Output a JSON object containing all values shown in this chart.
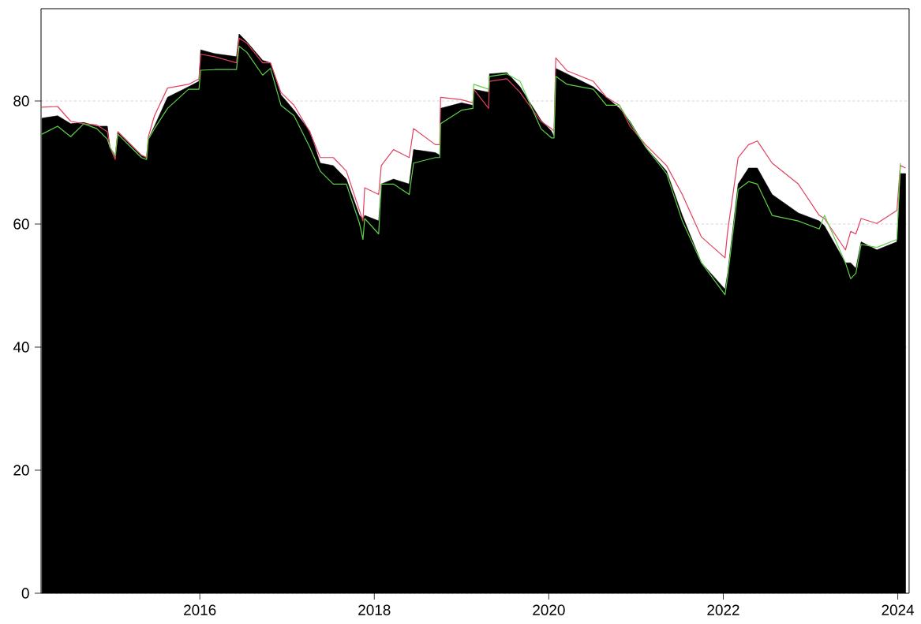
{
  "chart_data": {
    "type": "area",
    "x": [
      2014.19,
      2014.37,
      2014.52,
      2014.67,
      2014.82,
      2014.94,
      2014.97,
      2015.03,
      2015.06,
      2015.33,
      2015.39,
      2015.41,
      2015.48,
      2015.63,
      2015.87,
      2015.99,
      2016.01,
      2016.17,
      2016.42,
      2016.45,
      2016.54,
      2016.72,
      2016.81,
      2016.93,
      2017.08,
      2017.26,
      2017.38,
      2017.53,
      2017.68,
      2017.83,
      2017.87,
      2017.89,
      2018.05,
      2018.08,
      2018.22,
      2018.4,
      2018.45,
      2018.7,
      2018.75,
      2018.76,
      2019.0,
      2019.13,
      2019.14,
      2019.31,
      2019.32,
      2019.52,
      2019.67,
      2019.91,
      2020.03,
      2020.06,
      2020.08,
      2020.21,
      2020.51,
      2020.66,
      2020.81,
      2020.93,
      2021.11,
      2021.35,
      2021.53,
      2021.75,
      2022.02,
      2022.05,
      2022.17,
      2022.29,
      2022.39,
      2022.56,
      2022.86,
      2023.1,
      2023.16,
      2023.4,
      2023.46,
      2023.52,
      2023.58,
      2023.76,
      2023.99,
      2024.03,
      2024.09
    ],
    "series": [
      {
        "type": "area",
        "color": "#000000",
        "values": [
          77.2,
          77.6,
          76.3,
          76.5,
          75.9,
          75.9,
          72.5,
          70.8,
          75.0,
          71.2,
          70.8,
          73.8,
          75.9,
          80.6,
          82.3,
          83.2,
          88.3,
          87.7,
          87.2,
          90.9,
          89.6,
          86.6,
          86.2,
          81.0,
          78.5,
          75.1,
          69.9,
          69.5,
          67.3,
          61.4,
          60.9,
          61.4,
          60.5,
          66.5,
          67.3,
          66.5,
          72.1,
          71.6,
          71.2,
          78.8,
          79.7,
          79.3,
          81.9,
          81.4,
          84.4,
          84.6,
          82.3,
          76.9,
          75.1,
          74.2,
          85.3,
          84.4,
          82.3,
          80.6,
          78.8,
          76.7,
          72.5,
          68.6,
          61.4,
          53.7,
          49.4,
          52.0,
          66.5,
          69.1,
          69.1,
          64.8,
          61.8,
          60.5,
          59.7,
          53.7,
          53.7,
          52.8,
          57.1,
          55.8,
          57.1,
          68.2,
          68.2
        ]
      },
      {
        "type": "line",
        "color": "#e0405e",
        "values": [
          79.0,
          79.1,
          76.7,
          76.3,
          76.1,
          75.0,
          72.5,
          70.5,
          75.0,
          71.2,
          70.8,
          74.2,
          77.6,
          82.1,
          82.7,
          83.6,
          87.6,
          87.2,
          86.2,
          90.2,
          89.4,
          86.2,
          86.2,
          81.4,
          79.3,
          75.0,
          70.8,
          70.8,
          68.6,
          62.2,
          60.5,
          65.9,
          64.8,
          69.5,
          72.1,
          70.8,
          75.5,
          72.9,
          72.9,
          80.6,
          80.2,
          79.7,
          81.9,
          78.8,
          83.2,
          83.6,
          81.4,
          76.7,
          75.5,
          75.1,
          87.0,
          84.9,
          83.2,
          80.6,
          79.3,
          75.9,
          72.9,
          69.5,
          64.8,
          57.9,
          54.5,
          58.8,
          70.8,
          72.9,
          73.5,
          69.9,
          66.5,
          61.4,
          60.9,
          55.8,
          58.8,
          58.4,
          60.9,
          60.1,
          62.2,
          69.5,
          69.1
        ]
      },
      {
        "type": "line",
        "color": "#5fd04a",
        "values": [
          74.6,
          75.9,
          74.2,
          76.3,
          75.5,
          73.8,
          72.5,
          71.2,
          74.6,
          70.8,
          70.5,
          73.8,
          75.5,
          78.8,
          81.9,
          81.9,
          85.0,
          85.1,
          85.1,
          88.9,
          87.9,
          84.2,
          85.3,
          79.3,
          77.6,
          72.5,
          68.6,
          66.5,
          66.5,
          60.1,
          57.5,
          60.9,
          58.4,
          66.5,
          66.5,
          64.8,
          69.9,
          70.8,
          70.8,
          76.3,
          78.5,
          78.8,
          82.7,
          81.9,
          84.0,
          84.4,
          83.2,
          75.5,
          74.0,
          74.0,
          84.0,
          82.7,
          81.9,
          79.3,
          79.3,
          76.5,
          72.5,
          68.2,
          60.5,
          53.7,
          48.5,
          51.5,
          65.6,
          66.9,
          66.5,
          61.4,
          60.5,
          59.2,
          61.4,
          53.7,
          51.1,
          52.0,
          56.7,
          56.2,
          57.5,
          69.9,
          null
        ]
      }
    ],
    "xlim": [
      2014.18,
      2024.13
    ],
    "ylim": [
      0,
      95
    ],
    "xticks": [
      2016,
      2018,
      2020,
      2022,
      2024
    ],
    "yticks": [
      0,
      20,
      40,
      60,
      80
    ],
    "grid": "y"
  }
}
